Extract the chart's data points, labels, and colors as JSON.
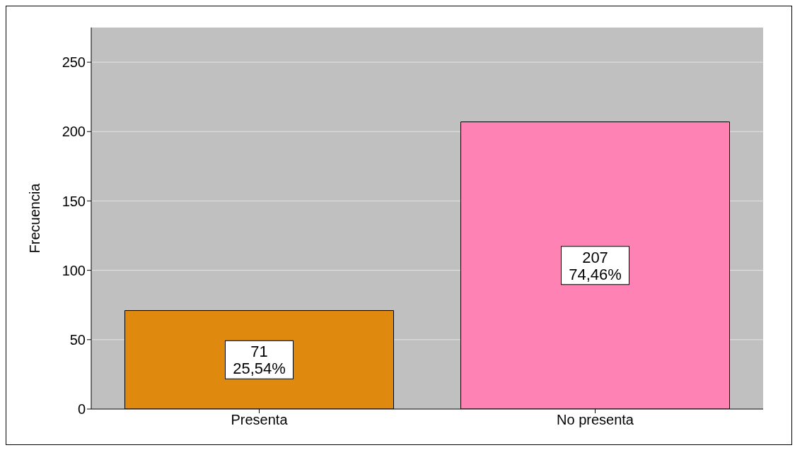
{
  "chart_data": {
    "type": "bar",
    "ylabel": "Frecuencia",
    "categories": [
      "Presenta",
      "No presenta"
    ],
    "values": [
      71,
      207
    ],
    "colors": [
      "#e0890f",
      "#ff82b4"
    ],
    "value_labels": [
      "71\n25,54%",
      "207\n74,46%"
    ],
    "ylim": [
      0,
      275
    ],
    "yticks": [
      0,
      50,
      100,
      150,
      200,
      250
    ],
    "grid": "y"
  }
}
